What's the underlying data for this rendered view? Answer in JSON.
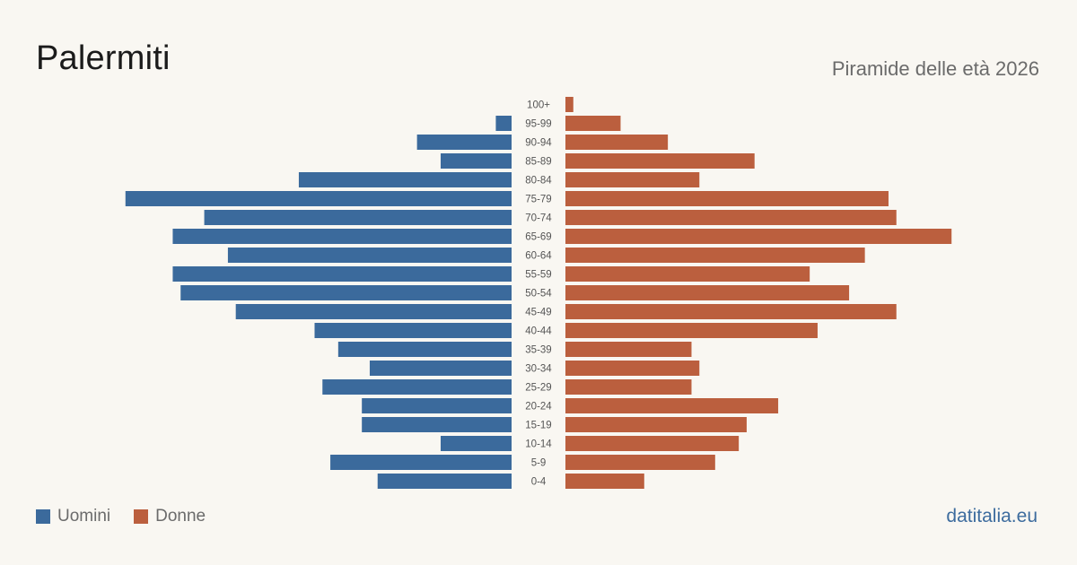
{
  "title": "Palermiti",
  "subtitle": "Piramide delle età 2026",
  "source": "datitalia.eu",
  "colors": {
    "men": "#3b6a9c",
    "women": "#bb5f3e",
    "background": "#f9f7f2"
  },
  "legend": {
    "men_label": "Uomini",
    "women_label": "Donne"
  },
  "chart_data": {
    "type": "bar",
    "orientation": "horizontal-pyramid",
    "categories": [
      "100+",
      "95-99",
      "90-94",
      "85-89",
      "80-84",
      "75-79",
      "70-74",
      "65-69",
      "60-64",
      "55-59",
      "50-54",
      "45-49",
      "40-44",
      "35-39",
      "30-34",
      "25-29",
      "20-24",
      "15-19",
      "10-14",
      "5-9",
      "0-4"
    ],
    "series": [
      {
        "name": "Uomini",
        "values": [
          0,
          2,
          12,
          9,
          27,
          49,
          39,
          43,
          36,
          43,
          42,
          35,
          25,
          22,
          18,
          24,
          19,
          19,
          9,
          23,
          17
        ]
      },
      {
        "name": "Donne",
        "values": [
          1,
          7,
          13,
          24,
          17,
          41,
          42,
          49,
          38,
          31,
          36,
          42,
          32,
          16,
          17,
          16,
          27,
          23,
          22,
          19,
          10
        ]
      }
    ],
    "xlabel": "",
    "ylabel": "",
    "grid": false,
    "legend_position": "bottom-left"
  }
}
